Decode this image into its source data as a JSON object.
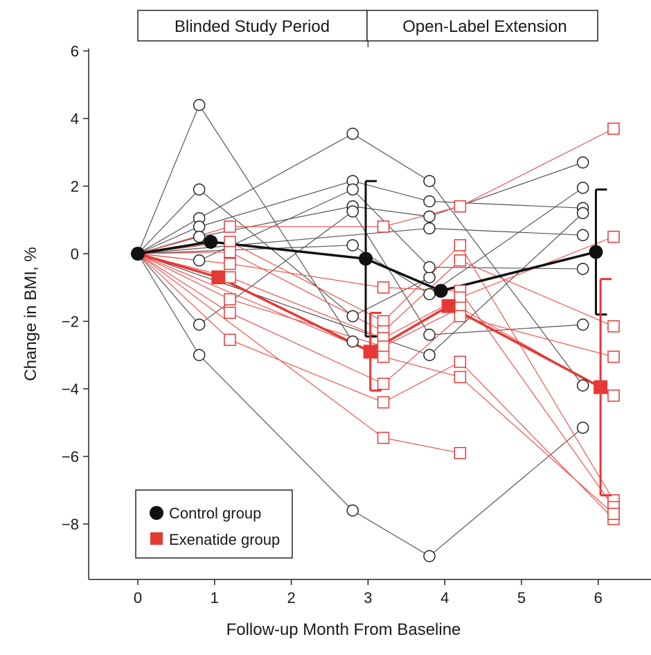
{
  "chart_data": {
    "type": "line",
    "xlabel": "Follow-up Month From Baseline",
    "ylabel": "Change in BMI, %",
    "xlim": [
      -0.65,
      6.4
    ],
    "ylim": [
      -9.7,
      6.2
    ],
    "x_ticks": [
      0,
      1,
      2,
      3,
      4,
      5,
      6
    ],
    "x_tick_labels": [
      "0",
      "1",
      "2",
      "3",
      "4",
      "5",
      "6"
    ],
    "y_ticks": [
      6,
      4,
      2,
      0,
      -2,
      -4,
      -6,
      -8
    ],
    "y_tick_labels": [
      "6",
      "4",
      "2",
      "0",
      "−2",
      "−4",
      "−6",
      "−8"
    ],
    "periods": [
      {
        "label": "Blinded Study Period",
        "x_range": [
          0,
          3
        ]
      },
      {
        "label": "Open-Label Extension",
        "x_range": [
          3,
          6
        ]
      }
    ],
    "colors": {
      "control": "#111111",
      "exenatide": "#e53935",
      "thin_control": "#555555",
      "thin_exenatide": "#ef5350"
    },
    "legend": {
      "position": "bottom-left",
      "entries": [
        {
          "label": "Control group",
          "marker": "filled-circle",
          "color": "#111111"
        },
        {
          "label": "Exenatide group",
          "marker": "filled-square",
          "color": "#e53935"
        }
      ]
    },
    "control_individual": [
      {
        "x": [
          0,
          0.8,
          2.8
        ],
        "y": [
          0,
          4.4,
          -2.6
        ]
      },
      {
        "x": [
          0,
          0.8,
          2.8,
          3.8
        ],
        "y": [
          0,
          1.9,
          -1.85,
          -0.7
        ]
      },
      {
        "x": [
          0,
          0.8,
          2.8,
          3.8,
          5.8
        ],
        "y": [
          0,
          1.05,
          3.55,
          2.15,
          -3.9
        ]
      },
      {
        "x": [
          0,
          0.8,
          2.8,
          3.8,
          5.8
        ],
        "y": [
          0,
          0.8,
          2.15,
          1.55,
          1.35
        ]
      },
      {
        "x": [
          0,
          0.8,
          2.8,
          3.8,
          5.8
        ],
        "y": [
          0,
          0.5,
          1.4,
          1.1,
          2.7
        ]
      },
      {
        "x": [
          0,
          0.8,
          2.8,
          3.8,
          5.8
        ],
        "y": [
          0,
          -0.2,
          1.9,
          -0.4,
          -0.45
        ]
      },
      {
        "x": [
          0,
          0.8,
          2.8,
          3.8,
          5.8
        ],
        "y": [
          0,
          -2.1,
          1.25,
          -2.4,
          -2.1
        ]
      },
      {
        "x": [
          0,
          0.8,
          2.8,
          3.8,
          5.8
        ],
        "y": [
          0,
          -3.0,
          -7.6,
          -8.95,
          -5.15
        ]
      },
      {
        "x": [
          0,
          2.8,
          3.8,
          5.8
        ],
        "y": [
          0,
          0.25,
          -1.2,
          1.95
        ]
      },
      {
        "x": [
          0,
          3.8,
          5.8
        ],
        "y": [
          0,
          0.75,
          0.55
        ]
      },
      {
        "x": [
          0,
          3.8,
          5.8
        ],
        "y": [
          0,
          -3.0,
          1.2
        ]
      }
    ],
    "exenatide_individual": [
      {
        "x": [
          0,
          1.2,
          3.2,
          4.2,
          6.2
        ],
        "y": [
          0,
          0.8,
          0.8,
          1.4,
          3.7
        ]
      },
      {
        "x": [
          0,
          1.2,
          3.2,
          4.2,
          6.2
        ],
        "y": [
          0,
          0.35,
          -2.0,
          0.25,
          -7.3
        ]
      },
      {
        "x": [
          0,
          1.2,
          3.2,
          4.2,
          6.2
        ],
        "y": [
          0,
          0.05,
          -2.3,
          -0.2,
          -2.15
        ]
      },
      {
        "x": [
          0,
          1.2,
          3.2,
          4.2,
          6.2
        ],
        "y": [
          0,
          -0.3,
          -1.0,
          -1.1,
          -7.5
        ]
      },
      {
        "x": [
          0,
          1.2,
          3.2,
          4.2,
          6.2
        ],
        "y": [
          0,
          -0.7,
          -2.5,
          -1.3,
          0.5
        ]
      },
      {
        "x": [
          0,
          1.2,
          3.2,
          4.2,
          6.2
        ],
        "y": [
          0,
          -1.35,
          -2.75,
          -1.6,
          -4.2
        ]
      },
      {
        "x": [
          0,
          1.2,
          3.2,
          4.2,
          6.2
        ],
        "y": [
          0,
          -1.75,
          -3.85,
          -1.85,
          -3.05
        ]
      },
      {
        "x": [
          0,
          1.2,
          3.2,
          4.2,
          6.2
        ],
        "y": [
          0,
          -2.55,
          -4.4,
          -3.2,
          -7.85
        ]
      },
      {
        "x": [
          0,
          3.2,
          4.2,
          6.2
        ],
        "y": [
          0,
          -3.05,
          -3.65,
          -7.7
        ]
      },
      {
        "x": [
          0,
          3.2,
          4.2
        ],
        "y": [
          0,
          -5.45,
          -5.9
        ]
      }
    ],
    "series": [
      {
        "name": "Control group",
        "x": [
          0,
          0.95,
          2.97,
          3.95,
          5.97
        ],
        "y": [
          0,
          0.35,
          -0.15,
          -1.1,
          0.05
        ],
        "error": [
          null,
          null,
          2.3,
          null,
          1.85
        ]
      },
      {
        "name": "Exenatide group",
        "x": [
          0,
          1.05,
          3.03,
          4.05,
          6.03
        ],
        "y": [
          0,
          -0.7,
          -2.9,
          -1.55,
          -3.95
        ],
        "error": [
          null,
          null,
          1.15,
          null,
          3.2
        ]
      }
    ]
  }
}
